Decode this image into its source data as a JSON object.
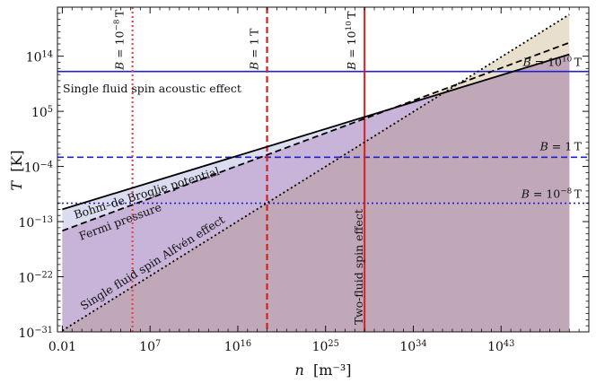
{
  "chart_data": {
    "type": "line",
    "xlabel_var": "n",
    "xlabel_unit": "[m⁻³]",
    "ylabel_var": "T",
    "ylabel_unit": "[K]",
    "x_scale": "log",
    "y_scale": "log",
    "xlim_log10": [
      -2.5,
      52
    ],
    "ylim_log10": [
      -31,
      22
    ],
    "x_ticks": [
      {
        "value_log10": -2,
        "label": "0.01"
      },
      {
        "value_log10": 7,
        "label": "10",
        "sup": "7"
      },
      {
        "value_log10": 16,
        "label": "10",
        "sup": "16"
      },
      {
        "value_log10": 25,
        "label": "10",
        "sup": "25"
      },
      {
        "value_log10": 34,
        "label": "10",
        "sup": "34"
      },
      {
        "value_log10": 43,
        "label": "10",
        "sup": "43"
      }
    ],
    "y_ticks": [
      {
        "value_log10": -31,
        "label": "10",
        "sup": "−31"
      },
      {
        "value_log10": -22,
        "label": "10",
        "sup": "−22"
      },
      {
        "value_log10": -13,
        "label": "10",
        "sup": "−13"
      },
      {
        "value_log10": -4,
        "label": "10",
        "sup": "−4"
      },
      {
        "value_log10": 5,
        "label": "10",
        "sup": "5"
      },
      {
        "value_log10": 14,
        "label": "10",
        "sup": "14"
      }
    ],
    "series": [
      {
        "name": "Bohm–de Broglie potential",
        "style": "solid",
        "color": "#000000",
        "x_log10": [
          -2,
          50
        ],
        "y_log10": [
          -11,
          14.3
        ],
        "fill": "#dcdcf0"
      },
      {
        "name": "Fermi pressure",
        "style": "dashed",
        "color": "#000000",
        "x_log10": [
          -2,
          50
        ],
        "y_log10": [
          -14.5,
          16.2
        ],
        "fill": "#c8b4d8"
      },
      {
        "name": "Single fluid spin Alfvén effect",
        "style": "dotted",
        "color": "#000000",
        "x_log10": [
          -2,
          50
        ],
        "y_log10": [
          -30.8,
          20.8
        ],
        "fill": "#c0a8b8"
      }
    ],
    "vlines": [
      {
        "label": "B = 10",
        "sup": "−8",
        "unit": "T",
        "x_log10": 5.2,
        "style": "dotted",
        "color": "#e24a4a"
      },
      {
        "label": "B = 1",
        "sup": "",
        "unit": "T",
        "x_log10": 19.0,
        "style": "dashed",
        "color": "#d42020"
      },
      {
        "label": "B = 10",
        "sup": "10",
        "unit": "T",
        "x_log10": 29.0,
        "style": "solid",
        "color": "#d42020"
      }
    ],
    "hlines": [
      {
        "label": "B = 10",
        "sup": "10",
        "unit": "T",
        "y_log10": 11.5,
        "style": "solid",
        "color": "#2020d0"
      },
      {
        "label": "B = 1",
        "sup": "",
        "unit": "T",
        "y_log10": -2.5,
        "style": "dashed",
        "color": "#2020d0"
      },
      {
        "label": "B = 10",
        "sup": "−8",
        "unit": "T",
        "y_log10": -10.0,
        "style": "dotted",
        "color": "#2020d0"
      }
    ],
    "annotations": [
      {
        "text": "Single fluid spin acoustic effect"
      },
      {
        "text": "Bohm–de Broglie potential"
      },
      {
        "text": "Fermi pressure"
      },
      {
        "text": "Single fluid spin Alfvén effect"
      },
      {
        "text": "Two-fluid spin effect"
      }
    ]
  }
}
